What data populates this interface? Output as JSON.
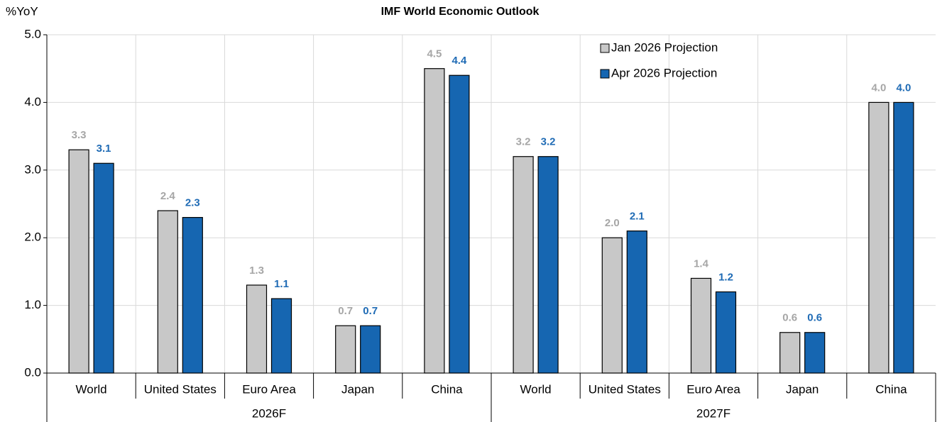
{
  "chart_data": {
    "type": "bar",
    "title": "IMF World Economic Outlook",
    "y_label": "%YoY",
    "groups": [
      {
        "name": "2026F",
        "categories": [
          "World",
          "United States",
          "Euro Area",
          "Japan",
          "China"
        ]
      },
      {
        "name": "2027F",
        "categories": [
          "World",
          "United States",
          "Euro Area",
          "Japan",
          "China"
        ]
      }
    ],
    "series": [
      {
        "name": "Jan 2026 Projection",
        "color": "#c8c8c8",
        "label_color": "#a6a6a6",
        "values": [
          3.3,
          2.4,
          1.3,
          0.7,
          4.5,
          3.2,
          2.0,
          1.4,
          0.6,
          4.0
        ],
        "value_labels": [
          "3.3",
          "2.4",
          "1.3",
          "0.7",
          "4.5",
          "3.2",
          "2.0",
          "1.4",
          "0.6",
          "4.0"
        ]
      },
      {
        "name": "Apr 2026 Projection",
        "color": "#1666b1",
        "label_color": "#1f6bb5",
        "values": [
          3.1,
          2.3,
          1.1,
          0.7,
          4.4,
          3.2,
          2.1,
          1.2,
          0.6,
          4.0
        ],
        "value_labels": [
          "3.1",
          "2.3",
          "1.1",
          "0.7",
          "4.4",
          "3.2",
          "2.1",
          "1.2",
          "0.6",
          "4.0"
        ]
      }
    ],
    "ylim": [
      0,
      5
    ],
    "yticks": [
      {
        "value": 0,
        "label": "0.0"
      },
      {
        "value": 1,
        "label": "1.0"
      },
      {
        "value": 2,
        "label": "2.0"
      },
      {
        "value": 3,
        "label": "3.0"
      },
      {
        "value": 4,
        "label": "4.0"
      },
      {
        "value": 5,
        "label": "5.0"
      }
    ],
    "grid": true
  }
}
